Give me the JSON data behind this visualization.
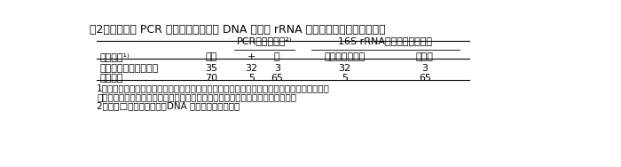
{
  "title": "表2　属特異的 PCR プライマーによる DNA 増幅と rRNA 遺伝子配列解析の結果比較",
  "bg_color": "#ffffff",
  "header_pcr": "PCRプライマー²⁾",
  "header_rrna": "16S rRNA配列に基づく同定",
  "col_headers": [
    "サンプル¹⁾",
    "株数",
    "+",
    "－",
    "アゾスピリラム",
    "その他"
  ],
  "rows": [
    [
      "アゾスピリラム様菌株",
      "35",
      "32",
      "3",
      "32",
      "3"
    ],
    [
      "未知菌株",
      "70",
      "5",
      "65",
      "5",
      "65"
    ]
  ],
  "footnote1": "1）アゾスピリラム様菌は選択培地と菌特性評価による選抜を経て分離され、当該属と推察さ",
  "footnote1b": "　れた菌株。未知菌株は土壌や植物体から分離された選択培地に生育する菌株。",
  "footnote2": "2）＋と□は、それぞれ、DNA 増幅の有無を示す。",
  "font_size": 8.0,
  "title_font_size": 9.0
}
